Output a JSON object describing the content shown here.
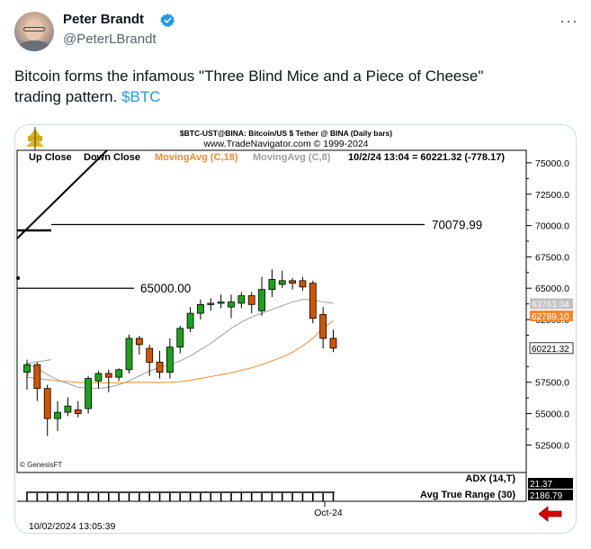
{
  "author": {
    "name": "Peter Brandt",
    "handle": "@PeterLBrandt",
    "avatar_icon": "profile-photo",
    "verified_icon": "verified-badge-icon",
    "more_icon": "more-options-icon"
  },
  "tweet": {
    "text_line1": "Bitcoin forms the infamous \"Three Blind Mice and a Piece of Cheese\"",
    "text_line2": "trading pattern. ",
    "cashtag": "$BTC"
  },
  "chart_header": {
    "title": "$BTC-UST@BINA:  Bitcoin/US $ Tether @ BINA  (Daily bars)",
    "subtitle": "www.TradeNavigator.com © 1999-2024",
    "legend_upclose": "Up Close",
    "legend_downclose": "Down Close",
    "legend_ma18": "MovingAvg (C,18)",
    "legend_ma8": "MovingAvg (C,8)",
    "quote": "10/2/24 13:04 = 60221.32 (-778.17)",
    "watermark": "© GenesisFT",
    "timestamp": "10/02/2024 13:05:39",
    "x_label": "Oct-24",
    "adx_label": "ADX (14,T)",
    "adx_value": "21.37",
    "atr_label": "Avg True Range (30)",
    "atr_value": "2186.79"
  },
  "chart_data": {
    "type": "candlestick",
    "y_ticks": [
      "75000.0",
      "72500.0",
      "70000.0",
      "67500.0",
      "65000.0",
      "62500.0",
      "57500.0",
      "55000.0",
      "52500.0"
    ],
    "y_tick_values": [
      75000,
      72500,
      70000,
      67500,
      65000,
      62500,
      57500,
      55000,
      52500
    ],
    "ylim": [
      50300,
      76000
    ],
    "price_tags": [
      {
        "label": "63763.04",
        "value": 63763,
        "color": "#c0c0c0"
      },
      {
        "label": "62789.10",
        "value": 62789,
        "color": "#f28a2e"
      },
      {
        "label": "60221.32",
        "value": 60221,
        "color": "#ffffff"
      }
    ],
    "level_lines": [
      {
        "label": "70079.99",
        "value": 70080
      },
      {
        "label": "65000.00",
        "value": 65000
      }
    ],
    "candles": [
      {
        "o": 58300,
        "h": 59300,
        "l": 56900,
        "c": 58900
      },
      {
        "o": 58900,
        "h": 59100,
        "l": 56000,
        "c": 57000
      },
      {
        "o": 57000,
        "h": 57300,
        "l": 53200,
        "c": 54600
      },
      {
        "o": 54600,
        "h": 56000,
        "l": 53600,
        "c": 55100
      },
      {
        "o": 55100,
        "h": 56300,
        "l": 54800,
        "c": 55600
      },
      {
        "o": 55300,
        "h": 56000,
        "l": 54700,
        "c": 55000
      },
      {
        "o": 55400,
        "h": 58000,
        "l": 55000,
        "c": 57800
      },
      {
        "o": 57600,
        "h": 58400,
        "l": 57000,
        "c": 58200
      },
      {
        "o": 58200,
        "h": 58500,
        "l": 56700,
        "c": 57900
      },
      {
        "o": 57900,
        "h": 58600,
        "l": 57600,
        "c": 58500
      },
      {
        "o": 58500,
        "h": 61300,
        "l": 58200,
        "c": 61000
      },
      {
        "o": 61000,
        "h": 61200,
        "l": 59700,
        "c": 60500
      },
      {
        "o": 60200,
        "h": 60500,
        "l": 58000,
        "c": 59100
      },
      {
        "o": 59100,
        "h": 60000,
        "l": 57800,
        "c": 58300
      },
      {
        "o": 58300,
        "h": 61000,
        "l": 57800,
        "c": 60300
      },
      {
        "o": 60300,
        "h": 62000,
        "l": 59800,
        "c": 61800
      },
      {
        "o": 61800,
        "h": 63500,
        "l": 61500,
        "c": 63000
      },
      {
        "o": 63000,
        "h": 64100,
        "l": 62500,
        "c": 63700
      },
      {
        "o": 63700,
        "h": 64200,
        "l": 63200,
        "c": 63800
      },
      {
        "o": 63800,
        "h": 64500,
        "l": 63400,
        "c": 63900
      },
      {
        "o": 63500,
        "h": 64500,
        "l": 62600,
        "c": 63900
      },
      {
        "o": 63800,
        "h": 64700,
        "l": 63400,
        "c": 64400
      },
      {
        "o": 64400,
        "h": 64700,
        "l": 63000,
        "c": 63700
      },
      {
        "o": 63200,
        "h": 65900,
        "l": 62800,
        "c": 64900
      },
      {
        "o": 64900,
        "h": 66500,
        "l": 64300,
        "c": 65700
      },
      {
        "o": 65300,
        "h": 66400,
        "l": 65000,
        "c": 65600
      },
      {
        "o": 65600,
        "h": 65800,
        "l": 64900,
        "c": 65400
      },
      {
        "o": 65600,
        "h": 65900,
        "l": 64800,
        "c": 65100
      },
      {
        "o": 65400,
        "h": 65600,
        "l": 62200,
        "c": 62600
      },
      {
        "o": 62900,
        "h": 63500,
        "l": 60200,
        "c": 61000
      },
      {
        "o": 61000,
        "h": 61700,
        "l": 59900,
        "c": 60221
      }
    ],
    "ma18": [
      57900,
      57800,
      57700,
      57600,
      57550,
      57500,
      57480,
      57460,
      57450,
      57460,
      57480,
      57500,
      57500,
      57480,
      57500,
      57550,
      57650,
      57800,
      57950,
      58100,
      58250,
      58450,
      58650,
      58900,
      59200,
      59500,
      59900,
      60400,
      61000,
      61800,
      62400
    ],
    "ma8": [
      59000,
      58600,
      58100,
      57700,
      57400,
      57100,
      57000,
      57000,
      57100,
      57300,
      57600,
      58000,
      58400,
      58700,
      58900,
      59200,
      59600,
      60100,
      60600,
      61200,
      61800,
      62300,
      62700,
      63000,
      63300,
      63600,
      63900,
      64100,
      64100,
      63900,
      63800
    ],
    "up_color": "#1aa31a",
    "down_color": "#d35400",
    "ma18_color": "#f28a2e",
    "ma8_color": "#9e9e9e"
  }
}
